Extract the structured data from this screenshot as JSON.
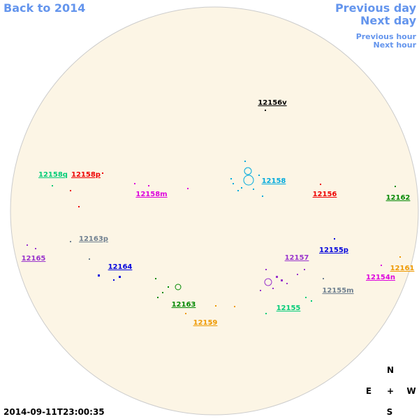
{
  "nav": {
    "back": "Back to 2014",
    "previous_day": "Previous day",
    "next_day": "Next day",
    "previous_hour": "Previous hour",
    "next_hour": "Next hour"
  },
  "timestamp": "2014-09-11T23:00:35",
  "compass": {
    "north": "N",
    "east": "E",
    "center": "+",
    "west": "W",
    "south": "S"
  },
  "regions": [
    {
      "label": "12156v",
      "color": "#000000"
    },
    {
      "label": "12158q",
      "color": "#00cc77"
    },
    {
      "label": "12158p",
      "color": "#ee0000"
    },
    {
      "label": "12158",
      "color": "#00aadd"
    },
    {
      "label": "12156",
      "color": "#ee0000"
    },
    {
      "label": "12162",
      "color": "#008800"
    },
    {
      "label": "12158m",
      "color": "#dd00dd"
    },
    {
      "label": "12163p",
      "color": "#708090"
    },
    {
      "label": "12165",
      "color": "#9933cc"
    },
    {
      "label": "12155p",
      "color": "#0000dd"
    },
    {
      "label": "12157",
      "color": "#9933cc"
    },
    {
      "label": "12164",
      "color": "#0000dd"
    },
    {
      "label": "12161",
      "color": "#ee9900"
    },
    {
      "label": "12154n",
      "color": "#dd00dd"
    },
    {
      "label": "12155m",
      "color": "#708090"
    },
    {
      "label": "12163",
      "color": "#008800"
    },
    {
      "label": "12155",
      "color": "#00cc77"
    },
    {
      "label": "12159",
      "color": "#ee9900"
    }
  ]
}
